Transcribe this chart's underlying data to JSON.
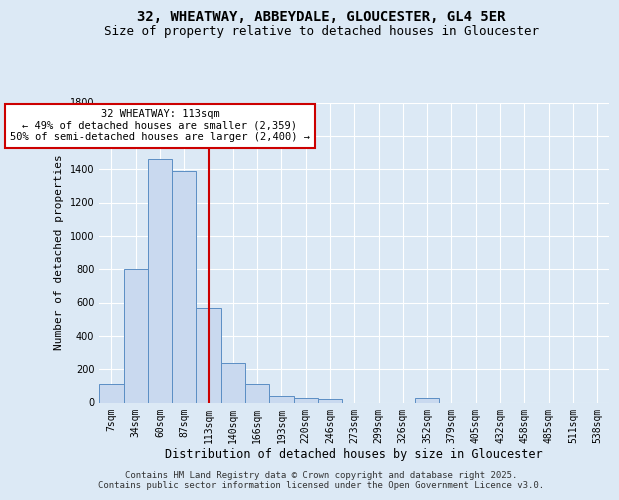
{
  "title_line1": "32, WHEATWAY, ABBEYDALE, GLOUCESTER, GL4 5ER",
  "title_line2": "Size of property relative to detached houses in Gloucester",
  "xlabel": "Distribution of detached houses by size in Gloucester",
  "ylabel": "Number of detached properties",
  "bar_labels": [
    "7sqm",
    "34sqm",
    "60sqm",
    "87sqm",
    "113sqm",
    "140sqm",
    "166sqm",
    "193sqm",
    "220sqm",
    "246sqm",
    "273sqm",
    "299sqm",
    "326sqm",
    "352sqm",
    "379sqm",
    "405sqm",
    "432sqm",
    "458sqm",
    "485sqm",
    "511sqm",
    "538sqm"
  ],
  "bar_values": [
    110,
    800,
    1460,
    1390,
    570,
    240,
    110,
    40,
    30,
    20,
    0,
    0,
    0,
    30,
    0,
    0,
    0,
    0,
    0,
    0,
    0
  ],
  "bar_color": "#c9d9ef",
  "bar_edge_color": "#5b8ec4",
  "vline_x_index": 4,
  "vline_color": "#cc0000",
  "annotation_text": "32 WHEATWAY: 113sqm\n← 49% of detached houses are smaller (2,359)\n50% of semi-detached houses are larger (2,400) →",
  "annotation_box_color": "#ffffff",
  "annotation_box_edge_color": "#cc0000",
  "ylim": [
    0,
    1800
  ],
  "yticks": [
    0,
    200,
    400,
    600,
    800,
    1000,
    1200,
    1400,
    1600,
    1800
  ],
  "background_color": "#dce9f5",
  "plot_background": "#dce9f5",
  "footer_text": "Contains HM Land Registry data © Crown copyright and database right 2025.\nContains public sector information licensed under the Open Government Licence v3.0.",
  "title_fontsize": 10,
  "subtitle_fontsize": 9,
  "tick_fontsize": 7,
  "ylabel_fontsize": 8,
  "xlabel_fontsize": 8.5,
  "footer_fontsize": 6.5
}
